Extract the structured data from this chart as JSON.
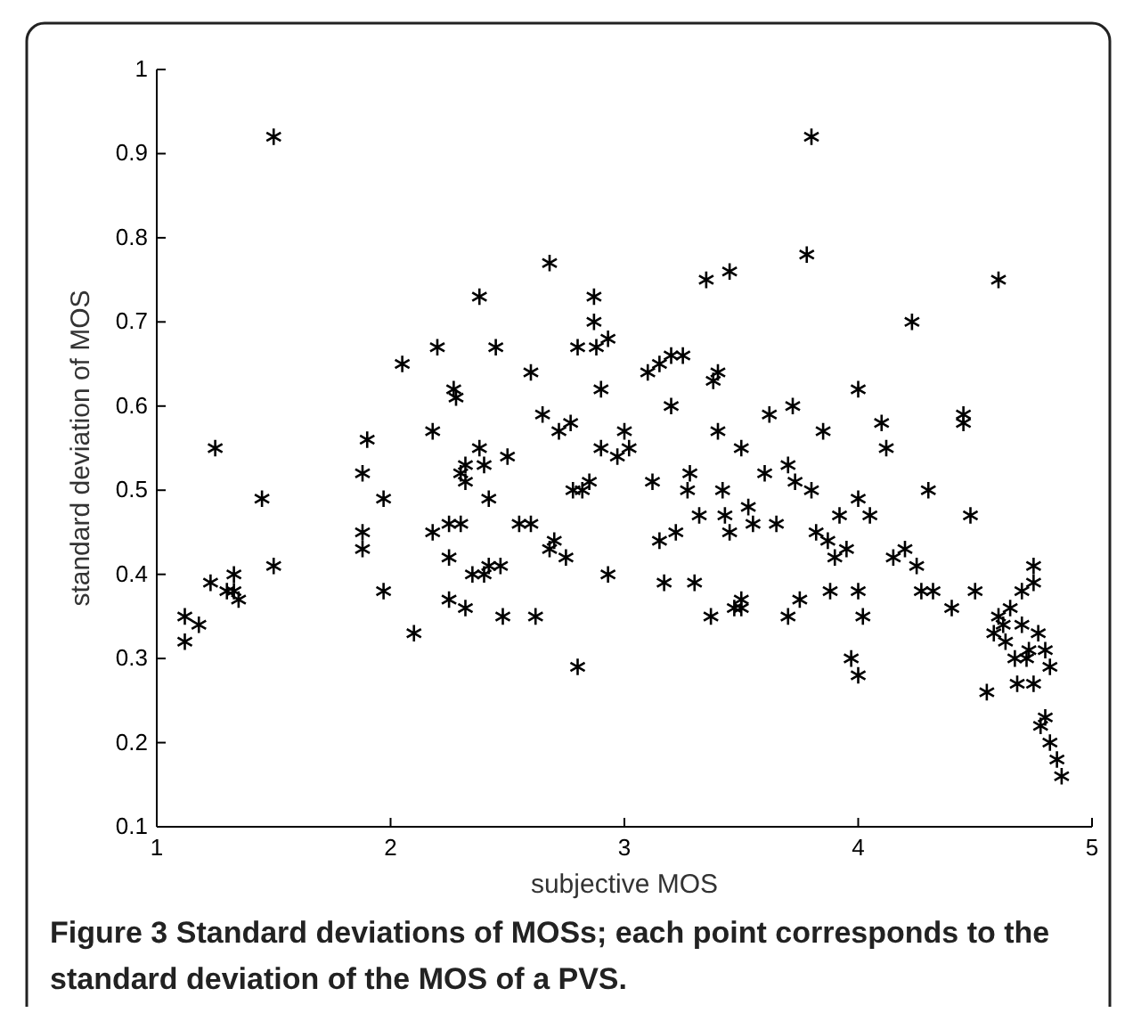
{
  "chart_data": {
    "type": "scatter",
    "xlabel": "subjective MOS",
    "ylabel": "standard deviation of MOS",
    "annotations": [
      "Figure 3",
      "Standard deviations of MOSs; each point corresponds to the standard deviation of the MOS of a PVS."
    ],
    "xlim": [
      1,
      5
    ],
    "xticks": [
      1,
      2,
      3,
      4,
      5
    ],
    "ylim": [
      0.1,
      1
    ],
    "yticks": [
      0.1,
      0.2,
      0.3,
      0.4,
      0.5,
      0.6,
      0.7,
      0.8,
      0.9,
      1
    ],
    "grid": false,
    "marker": "cross",
    "series": [
      {
        "color": "#000000",
        "x": [
          1.12,
          1.12,
          1.18,
          1.25,
          1.23,
          1.3,
          1.33,
          1.33,
          1.35,
          1.45,
          1.5,
          1.5,
          1.88,
          1.88,
          1.88,
          1.9,
          1.97,
          1.97,
          2.05,
          2.1,
          2.18,
          2.18,
          2.2,
          2.25,
          2.25,
          2.25,
          2.27,
          2.28,
          2.3,
          2.3,
          2.32,
          2.32,
          2.32,
          2.35,
          2.38,
          2.38,
          2.4,
          2.4,
          2.42,
          2.42,
          2.45,
          2.47,
          2.48,
          2.5,
          2.55,
          2.6,
          2.6,
          2.62,
          2.65,
          2.68,
          2.68,
          2.7,
          2.72,
          2.75,
          2.77,
          2.78,
          2.8,
          2.8,
          2.82,
          2.85,
          2.87,
          2.87,
          2.88,
          2.9,
          2.9,
          2.93,
          2.93,
          2.97,
          3.0,
          3.02,
          3.1,
          3.12,
          3.15,
          3.15,
          3.17,
          3.2,
          3.2,
          3.22,
          3.25,
          3.27,
          3.28,
          3.3,
          3.32,
          3.35,
          3.37,
          3.38,
          3.4,
          3.4,
          3.42,
          3.43,
          3.45,
          3.45,
          3.47,
          3.5,
          3.5,
          3.5,
          3.53,
          3.55,
          3.6,
          3.62,
          3.65,
          3.7,
          3.7,
          3.72,
          3.73,
          3.75,
          3.78,
          3.8,
          3.8,
          3.82,
          3.85,
          3.87,
          3.88,
          3.9,
          3.92,
          3.95,
          3.97,
          4.0,
          4.0,
          4.0,
          4.0,
          4.02,
          4.05,
          4.1,
          4.12,
          4.15,
          4.2,
          4.23,
          4.25,
          4.27,
          4.3,
          4.32,
          4.4,
          4.45,
          4.45,
          4.48,
          4.5,
          4.55,
          4.58,
          4.6,
          4.6,
          4.62,
          4.63,
          4.65,
          4.67,
          4.68,
          4.7,
          4.7,
          4.72,
          4.73,
          4.75,
          4.75,
          4.75,
          4.77,
          4.78,
          4.8,
          4.8,
          4.82,
          4.82,
          4.85,
          4.87
        ],
        "values": [
          0.35,
          0.32,
          0.34,
          0.55,
          0.39,
          0.38,
          0.4,
          0.38,
          0.37,
          0.49,
          0.41,
          0.92,
          0.52,
          0.45,
          0.43,
          0.56,
          0.49,
          0.38,
          0.65,
          0.33,
          0.57,
          0.45,
          0.67,
          0.46,
          0.42,
          0.37,
          0.62,
          0.61,
          0.52,
          0.46,
          0.53,
          0.51,
          0.36,
          0.4,
          0.73,
          0.55,
          0.53,
          0.4,
          0.49,
          0.41,
          0.67,
          0.41,
          0.35,
          0.54,
          0.46,
          0.64,
          0.46,
          0.35,
          0.59,
          0.77,
          0.43,
          0.44,
          0.57,
          0.42,
          0.58,
          0.5,
          0.67,
          0.29,
          0.5,
          0.51,
          0.73,
          0.7,
          0.67,
          0.62,
          0.55,
          0.68,
          0.4,
          0.54,
          0.57,
          0.55,
          0.64,
          0.51,
          0.65,
          0.44,
          0.39,
          0.66,
          0.6,
          0.45,
          0.66,
          0.5,
          0.52,
          0.39,
          0.47,
          0.75,
          0.35,
          0.63,
          0.64,
          0.57,
          0.5,
          0.47,
          0.76,
          0.45,
          0.36,
          0.55,
          0.36,
          0.37,
          0.48,
          0.46,
          0.52,
          0.59,
          0.46,
          0.53,
          0.35,
          0.6,
          0.51,
          0.37,
          0.78,
          0.92,
          0.5,
          0.45,
          0.57,
          0.44,
          0.38,
          0.42,
          0.47,
          0.43,
          0.3,
          0.28,
          0.62,
          0.49,
          0.38,
          0.35,
          0.47,
          0.58,
          0.55,
          0.42,
          0.43,
          0.7,
          0.41,
          0.38,
          0.5,
          0.38,
          0.36,
          0.59,
          0.58,
          0.47,
          0.38,
          0.26,
          0.33,
          0.75,
          0.35,
          0.34,
          0.32,
          0.36,
          0.3,
          0.27,
          0.38,
          0.34,
          0.3,
          0.31,
          0.41,
          0.39,
          0.27,
          0.33,
          0.22,
          0.23,
          0.31,
          0.29,
          0.2,
          0.18,
          0.16
        ]
      }
    ]
  }
}
